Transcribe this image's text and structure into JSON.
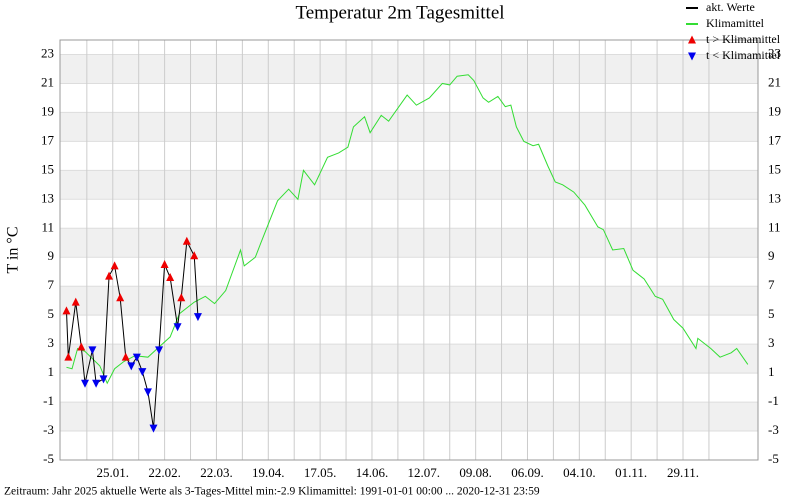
{
  "chart_data": {
    "type": "line",
    "title": "Temperatur 2m Tagesmittel",
    "y_label": "T in °C",
    "footer": "Zeitraum: Jahr 2025   aktuelle Werte als 3-Tages-Mittel min:-2.9  Klimamittel: 1991-01-01 00:00 ... 2020-12-31 23:59",
    "xlim": [
      -3.5,
      373.5
    ],
    "xticks": [
      {
        "value": 25,
        "label": "25.01."
      },
      {
        "value": 53,
        "label": "22.02."
      },
      {
        "value": 81,
        "label": "22.03."
      },
      {
        "value": 109,
        "label": "19.04."
      },
      {
        "value": 137,
        "label": "17.05."
      },
      {
        "value": 165,
        "label": "14.06."
      },
      {
        "value": 193,
        "label": "12.07."
      },
      {
        "value": 221,
        "label": "09.08."
      },
      {
        "value": 249,
        "label": "06.09."
      },
      {
        "value": 277,
        "label": "04.10."
      },
      {
        "value": 305,
        "label": "01.11."
      },
      {
        "value": 333,
        "label": "29.11."
      }
    ],
    "xminorticks": [
      11,
      39,
      67,
      95,
      123,
      151,
      179,
      207,
      235,
      263,
      291,
      319,
      347
    ],
    "ylim": [
      -5,
      24
    ],
    "yticks": [
      -5,
      -3,
      -1,
      1,
      3,
      5,
      7,
      9,
      11,
      13,
      15,
      17,
      19,
      21,
      23
    ],
    "grid": true,
    "legend": "top-right",
    "series": [
      {
        "name": "akt. Werte",
        "color": "#000000",
        "x": [
          0,
          1,
          5,
          8,
          10,
          14,
          16,
          20,
          23,
          26,
          29,
          32,
          35,
          38,
          41,
          44,
          47,
          50,
          53,
          56,
          60,
          62,
          65,
          69,
          71
        ],
        "values": [
          5.3,
          2.1,
          5.9,
          2.8,
          0.3,
          2.6,
          0.3,
          0.6,
          7.7,
          8.4,
          6.2,
          2.1,
          1.5,
          2.1,
          1.1,
          -0.3,
          -2.8,
          2.6,
          8.5,
          7.6,
          4.2,
          6.2,
          10.1,
          9.1,
          4.9
        ],
        "marker_index": [
          0,
          0,
          0,
          0,
          1,
          1,
          1,
          1,
          0,
          0,
          0,
          0,
          1,
          1,
          1,
          1,
          1,
          1,
          0,
          0,
          1,
          0,
          0,
          0,
          1
        ]
      },
      {
        "name": "Klimamittel",
        "color": "#33dd33",
        "x": [
          0,
          3,
          6,
          10,
          18,
          22,
          26,
          31,
          37,
          44,
          50,
          56,
          61,
          69,
          75,
          80,
          86,
          94,
          96,
          102,
          105,
          114,
          120,
          125,
          128,
          134,
          141,
          147,
          152,
          155,
          161,
          164,
          170,
          174,
          184,
          189,
          196,
          203,
          207,
          211,
          217,
          220,
          225,
          228,
          233,
          237,
          240,
          243,
          247,
          252,
          255,
          260,
          264,
          268,
          274,
          280,
          287,
          290,
          295,
          301,
          306,
          312,
          318,
          322,
          328,
          333,
          340,
          341,
          348,
          353,
          359,
          362,
          368
        ],
        "values": [
          1.4,
          1.3,
          2.7,
          2.5,
          1.5,
          0.3,
          1.3,
          1.8,
          2.2,
          2.1,
          2.8,
          3.5,
          5.1,
          5.9,
          6.3,
          5.8,
          6.7,
          9.5,
          8.4,
          9.0,
          10.0,
          12.9,
          13.7,
          13.0,
          15.0,
          14.0,
          15.9,
          16.2,
          16.6,
          18.0,
          18.7,
          17.6,
          18.8,
          18.4,
          20.2,
          19.5,
          20.0,
          21.0,
          20.9,
          21.5,
          21.6,
          21.2,
          20.0,
          19.7,
          20.1,
          19.4,
          19.5,
          18.0,
          17.0,
          16.7,
          16.8,
          15.3,
          14.2,
          14.0,
          13.5,
          12.6,
          11.1,
          10.9,
          9.5,
          9.6,
          8.1,
          7.5,
          6.3,
          6.1,
          4.7,
          4.1,
          2.7,
          3.4,
          2.7,
          2.1,
          2.4,
          2.7,
          1.6
        ]
      }
    ],
    "markers": [
      {
        "name": "t > Klimamittel",
        "color": "#ee0000",
        "symbol": "triangle-up"
      },
      {
        "name": "t < Klimamittel",
        "color": "#0000ee",
        "symbol": "triangle-down"
      }
    ]
  }
}
